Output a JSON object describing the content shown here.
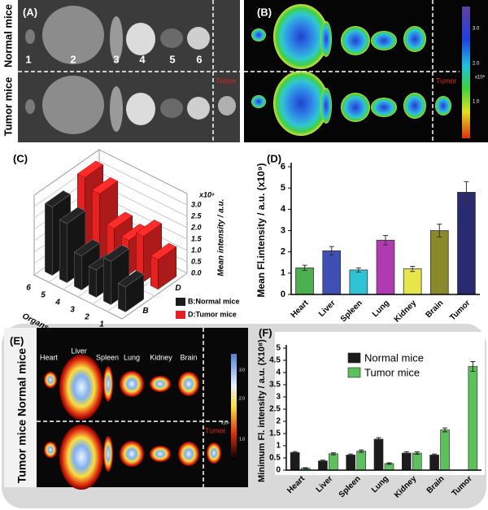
{
  "panels": {
    "A": {
      "label": "(A)",
      "rows": [
        "Normal mice",
        "Tumor mice"
      ],
      "organ_numbers": [
        "1",
        "2",
        "3",
        "4",
        "5",
        "6"
      ],
      "tumor": "Tumor"
    },
    "B": {
      "label": "(B)",
      "colorbar_ticks": [
        "3.0",
        "2.0",
        "1.0"
      ],
      "colorbar_unit": "x10⁹",
      "tumor": "Tumor"
    },
    "E": {
      "label": "(E)",
      "rows": [
        "Normal mice",
        "Tumor mice"
      ],
      "organs": [
        "Heart",
        "Liver",
        "Spleen",
        "Lung",
        "Kidney",
        "Brain"
      ],
      "tumor": "Tumor",
      "colorbar_ticks": [
        "3.0",
        "2.0",
        "1.0"
      ],
      "colorbar_unit": "x10⁸"
    }
  },
  "chart_data": [
    {
      "type": "bar3d",
      "label": "(C)",
      "categories": [
        "1",
        "2",
        "3",
        "4",
        "5",
        "6"
      ],
      "depth_categories": [
        "B",
        "D"
      ],
      "x_label": "Organs",
      "z_label": "Mean intensity / a.u.",
      "z_unit": "x10⁹",
      "zlim": [
        0,
        3.5
      ],
      "zticks": [
        {
          "value": 0,
          "label": "0.0"
        },
        {
          "value": 0.5,
          "label": "0.5"
        },
        {
          "value": 1,
          "label": "1.0"
        },
        {
          "value": 1.5,
          "label": "1.5"
        },
        {
          "value": 2,
          "label": "2.0"
        },
        {
          "value": 2.5,
          "label": "2.5"
        },
        {
          "value": 3,
          "label": "3.0"
        }
      ],
      "series": [
        {
          "name": "B:Normal mice",
          "color": "#1c1c1c",
          "values": [
            1.1,
            1.9,
            1.2,
            1.5,
            2.6,
            3.0
          ]
        },
        {
          "name": "D:Tumor mice",
          "color": "#e52222",
          "values": [
            1.3,
            2.0,
            1.5,
            1.7,
            2.9,
            3.3
          ]
        }
      ]
    },
    {
      "type": "bar",
      "label": "(D)",
      "categories": [
        "Heart",
        "Liver",
        "Spleen",
        "Lung",
        "Kidney",
        "Brain",
        "Tumor"
      ],
      "values": [
        1.25,
        2.05,
        1.15,
        2.55,
        1.2,
        3.0,
        4.8
      ],
      "errors": [
        0.12,
        0.2,
        0.1,
        0.22,
        0.12,
        0.3,
        0.5
      ],
      "colors": [
        "#4caf50",
        "#3f4fb5",
        "#2ec4d6",
        "#b03ab0",
        "#e6e64a",
        "#8a8a2a",
        "#2a2a70"
      ],
      "y_label": "Mean Fl.intensity / a.u. (x10⁹)",
      "ylim": [
        0,
        6
      ],
      "yticks": [
        0,
        1,
        2,
        3,
        4,
        5,
        6
      ]
    },
    {
      "type": "grouped_bar",
      "label": "(F)",
      "categories": [
        "Heart",
        "Liver",
        "Spleen",
        "Lung",
        "Kidney",
        "Brain",
        "Tumor"
      ],
      "series": [
        {
          "name": "Normal mice",
          "color": "#1c1c1c",
          "values": [
            0.72,
            0.38,
            0.62,
            1.27,
            0.7,
            0.62,
            null
          ],
          "errors": [
            0.04,
            0.03,
            0.04,
            0.06,
            0.05,
            0.04,
            null
          ]
        },
        {
          "name": "Tumor mice",
          "color": "#5cc05c",
          "values": [
            0.08,
            0.67,
            0.78,
            0.27,
            0.7,
            1.65,
            4.25
          ],
          "errors": [
            0.02,
            0.04,
            0.05,
            0.03,
            0.05,
            0.08,
            0.2
          ]
        }
      ],
      "y_label": "Minimum Fl. intensity / a.u. (X10⁸)",
      "ylim": [
        0,
        5
      ],
      "yticks": [
        0,
        0.5,
        1,
        1.5,
        2,
        2.5,
        3,
        3.5,
        4,
        4.5,
        5
      ]
    }
  ]
}
